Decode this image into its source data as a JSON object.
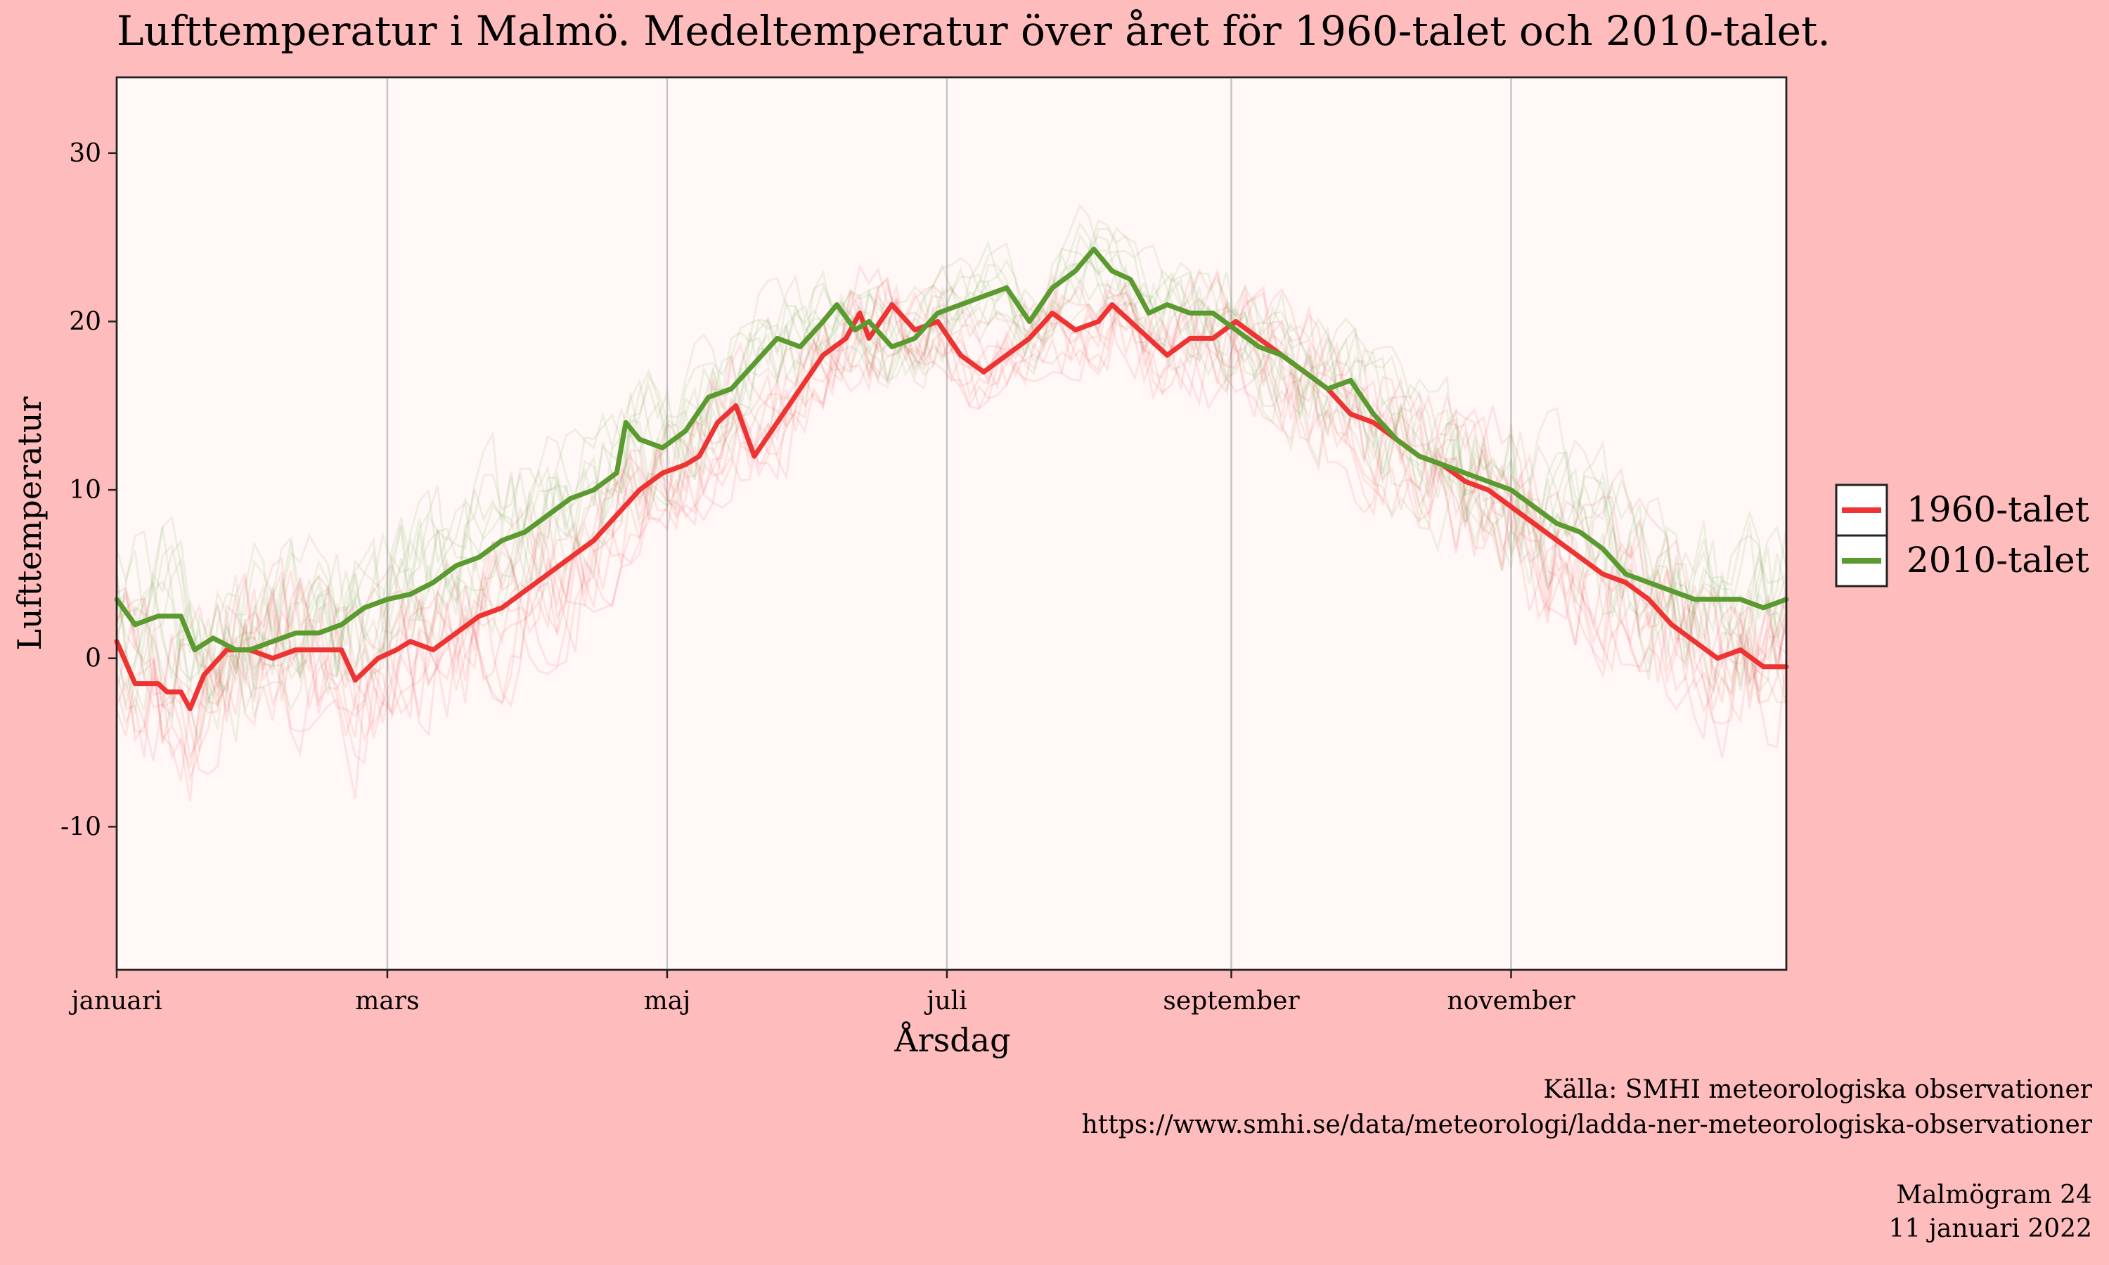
{
  "chart_data": {
    "type": "line",
    "title": "Lufttemperatur i Malmö. Medeltemperatur över året för 1960-talet och 2010-talet.",
    "xlabel": "Årsdag",
    "ylabel": "Lufttemperatur",
    "xlim": [
      1,
      365
    ],
    "ylim": [
      -18.5,
      34.5
    ],
    "x_ticks": [
      {
        "day": 1,
        "label": "januari"
      },
      {
        "day": 60,
        "label": "mars"
      },
      {
        "day": 121,
        "label": "maj"
      },
      {
        "day": 182,
        "label": "juli"
      },
      {
        "day": 244,
        "label": "september"
      },
      {
        "day": 305,
        "label": "november"
      }
    ],
    "y_ticks": [
      -10,
      0,
      10,
      20,
      30
    ],
    "grid": "vertical at month ticks",
    "legend_position": "right",
    "series": [
      {
        "name": "1960-talet",
        "color": "#ee3333",
        "points": [
          [
            1,
            1
          ],
          [
            5,
            -1.5
          ],
          [
            10,
            -1.5
          ],
          [
            12,
            -2
          ],
          [
            15,
            -2
          ],
          [
            17,
            -3
          ],
          [
            20,
            -1
          ],
          [
            25,
            0.5
          ],
          [
            30,
            0.5
          ],
          [
            35,
            0
          ],
          [
            40,
            0.5
          ],
          [
            45,
            0.5
          ],
          [
            50,
            0.5
          ],
          [
            53,
            -1.3
          ],
          [
            58,
            0
          ],
          [
            62,
            0.5
          ],
          [
            65,
            1
          ],
          [
            70,
            0.5
          ],
          [
            75,
            1.5
          ],
          [
            80,
            2.5
          ],
          [
            85,
            3
          ],
          [
            90,
            4
          ],
          [
            95,
            5
          ],
          [
            100,
            6
          ],
          [
            105,
            7
          ],
          [
            110,
            8.5
          ],
          [
            115,
            10
          ],
          [
            120,
            11
          ],
          [
            125,
            11.5
          ],
          [
            128,
            12
          ],
          [
            132,
            14
          ],
          [
            136,
            15
          ],
          [
            140,
            12
          ],
          [
            145,
            14
          ],
          [
            150,
            16
          ],
          [
            155,
            18
          ],
          [
            160,
            19
          ],
          [
            163,
            20.5
          ],
          [
            165,
            19
          ],
          [
            170,
            21
          ],
          [
            175,
            19.5
          ],
          [
            180,
            20
          ],
          [
            185,
            18
          ],
          [
            190,
            17
          ],
          [
            195,
            18
          ],
          [
            200,
            19
          ],
          [
            205,
            20.5
          ],
          [
            210,
            19.5
          ],
          [
            215,
            20
          ],
          [
            218,
            21
          ],
          [
            222,
            20
          ],
          [
            226,
            19
          ],
          [
            230,
            18
          ],
          [
            235,
            19
          ],
          [
            240,
            19
          ],
          [
            245,
            20
          ],
          [
            250,
            19
          ],
          [
            255,
            18
          ],
          [
            260,
            17
          ],
          [
            265,
            16
          ],
          [
            270,
            14.5
          ],
          [
            275,
            14
          ],
          [
            280,
            13
          ],
          [
            285,
            12
          ],
          [
            290,
            11.5
          ],
          [
            295,
            10.5
          ],
          [
            300,
            10
          ],
          [
            305,
            9
          ],
          [
            310,
            8
          ],
          [
            315,
            7
          ],
          [
            320,
            6
          ],
          [
            325,
            5
          ],
          [
            330,
            4.5
          ],
          [
            335,
            3.5
          ],
          [
            340,
            2
          ],
          [
            345,
            1
          ],
          [
            350,
            0
          ],
          [
            355,
            0.5
          ],
          [
            360,
            -0.5
          ],
          [
            365,
            -0.5
          ]
        ]
      },
      {
        "name": "2010-talet",
        "color": "#5a9a2f",
        "points": [
          [
            1,
            3.5
          ],
          [
            5,
            2
          ],
          [
            10,
            2.5
          ],
          [
            15,
            2.5
          ],
          [
            18,
            0.5
          ],
          [
            22,
            1.2
          ],
          [
            27,
            0.5
          ],
          [
            30,
            0.5
          ],
          [
            35,
            1
          ],
          [
            40,
            1.5
          ],
          [
            45,
            1.5
          ],
          [
            50,
            2
          ],
          [
            55,
            3
          ],
          [
            60,
            3.5
          ],
          [
            65,
            3.8
          ],
          [
            70,
            4.5
          ],
          [
            75,
            5.5
          ],
          [
            80,
            6
          ],
          [
            85,
            7
          ],
          [
            90,
            7.5
          ],
          [
            95,
            8.5
          ],
          [
            100,
            9.5
          ],
          [
            105,
            10
          ],
          [
            110,
            11
          ],
          [
            112,
            14
          ],
          [
            115,
            13
          ],
          [
            120,
            12.5
          ],
          [
            125,
            13.5
          ],
          [
            130,
            15.5
          ],
          [
            135,
            16
          ],
          [
            140,
            17.5
          ],
          [
            145,
            19
          ],
          [
            150,
            18.5
          ],
          [
            155,
            20
          ],
          [
            158,
            21
          ],
          [
            162,
            19.5
          ],
          [
            165,
            20
          ],
          [
            170,
            18.5
          ],
          [
            175,
            19
          ],
          [
            180,
            20.5
          ],
          [
            185,
            21
          ],
          [
            190,
            21.5
          ],
          [
            195,
            22
          ],
          [
            200,
            20
          ],
          [
            205,
            22
          ],
          [
            210,
            23
          ],
          [
            214,
            24.3
          ],
          [
            218,
            23
          ],
          [
            222,
            22.5
          ],
          [
            226,
            20.5
          ],
          [
            230,
            21
          ],
          [
            235,
            20.5
          ],
          [
            240,
            20.5
          ],
          [
            245,
            19.5
          ],
          [
            250,
            18.5
          ],
          [
            255,
            18
          ],
          [
            260,
            17
          ],
          [
            265,
            16
          ],
          [
            270,
            16.5
          ],
          [
            275,
            14.5
          ],
          [
            280,
            13
          ],
          [
            285,
            12
          ],
          [
            290,
            11.5
          ],
          [
            295,
            11
          ],
          [
            300,
            10.5
          ],
          [
            305,
            10
          ],
          [
            310,
            9
          ],
          [
            315,
            8
          ],
          [
            320,
            7.5
          ],
          [
            325,
            6.5
          ],
          [
            330,
            5
          ],
          [
            335,
            4.5
          ],
          [
            340,
            4
          ],
          [
            345,
            3.5
          ],
          [
            350,
            3.5
          ],
          [
            355,
            3.5
          ],
          [
            360,
            3
          ],
          [
            365,
            3.5
          ]
        ]
      }
    ],
    "background_traces": {
      "count": 20,
      "note": "individual year curves drawn faintly"
    }
  },
  "caption": {
    "source_line1": "Källa: SMHI meteorologiska observationer",
    "source_line2": "https://www.smhi.se/data/meteorologi/ladda-ner-meteorologiska-observationer",
    "credit_line1": "Malmögram 24",
    "credit_line2": "11 januari 2022"
  },
  "colors": {
    "background": "#ffbcbc",
    "panel": "#fff8f7",
    "line_1960": "#ee3333",
    "line_2010": "#5a9a2f"
  }
}
